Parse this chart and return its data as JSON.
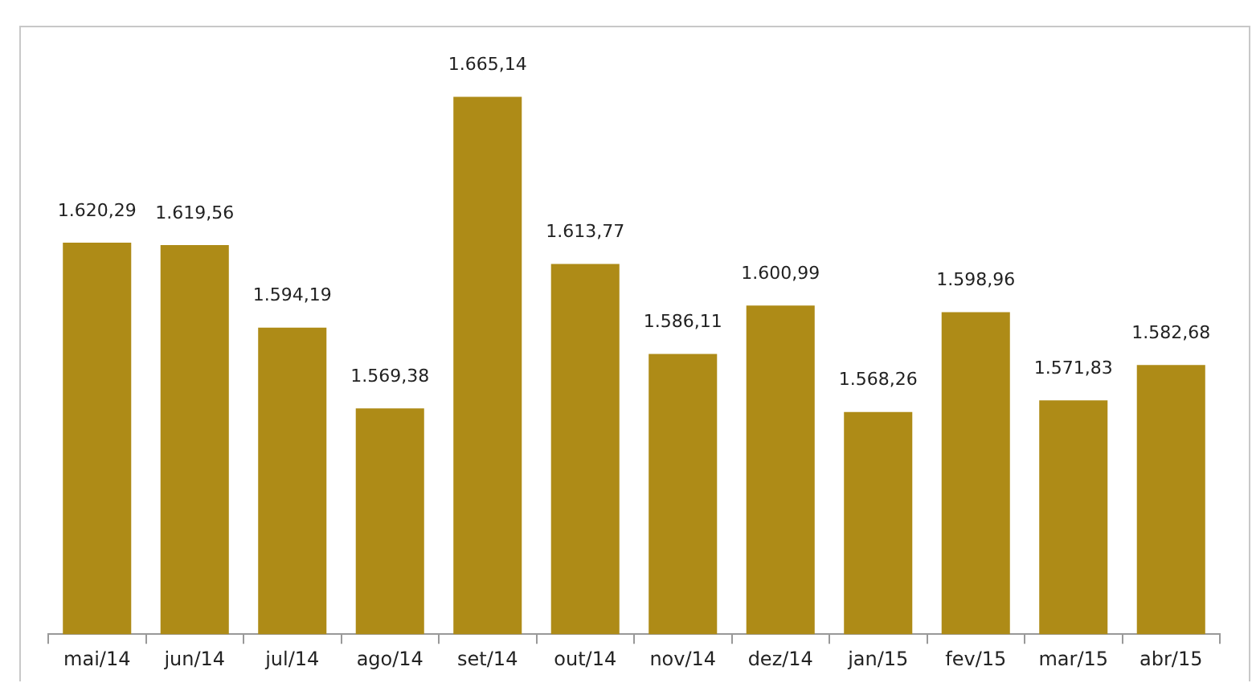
{
  "chart_data": {
    "type": "bar",
    "categories": [
      "mai/14",
      "jun/14",
      "jul/14",
      "ago/14",
      "set/14",
      "out/14",
      "nov/14",
      "dez/14",
      "jan/15",
      "fev/15",
      "mar/15",
      "abr/15"
    ],
    "values": [
      1620.29,
      1619.56,
      1594.19,
      1569.38,
      1665.14,
      1613.77,
      1586.11,
      1600.99,
      1568.26,
      1598.96,
      1571.83,
      1582.68
    ],
    "value_labels": [
      "1.620,29",
      "1.619,56",
      "1.594,19",
      "1.569,38",
      "1.665,14",
      "1.613,77",
      "1.586,11",
      "1.600,99",
      "1.568,26",
      "1.598,96",
      "1.571,83",
      "1.582,68"
    ],
    "color": "#ae8b17",
    "ylim": [
      1500,
      1685
    ],
    "grid": false,
    "legend": false
  }
}
